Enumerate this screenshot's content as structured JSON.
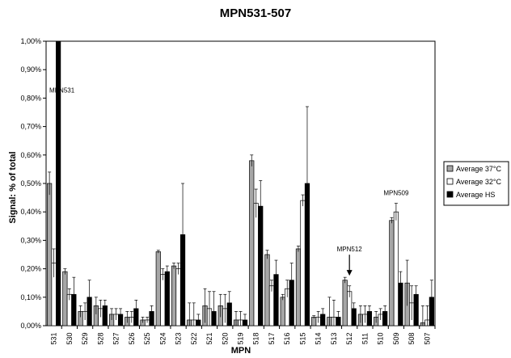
{
  "chart_data": {
    "type": "bar",
    "title": "MPN531-507",
    "xlabel": "MPN",
    "ylabel": "Signal: % of total",
    "ylim": [
      0,
      1.0
    ],
    "y_ticks": [
      "0,00%",
      "0,10%",
      "0,20%",
      "0,30%",
      "0,40%",
      "0,50%",
      "0,60%",
      "0,70%",
      "0,80%",
      "0,90%",
      "1,00%"
    ],
    "grid": false,
    "legend_position": "right",
    "categories": [
      "531",
      "530",
      "529",
      "528",
      "527",
      "526",
      "525",
      "524",
      "523",
      "522",
      "521",
      "520",
      "519",
      "518",
      "517",
      "516",
      "515",
      "514",
      "513",
      "512",
      "511",
      "510",
      "509",
      "508",
      "507"
    ],
    "series": [
      {
        "name": "Average 37°C",
        "color": "#a6a6a6",
        "values": [
          0.5,
          0.19,
          0.05,
          0.07,
          0.04,
          0.03,
          0.02,
          0.26,
          0.21,
          0.02,
          0.07,
          0.07,
          0.02,
          0.58,
          0.25,
          0.1,
          0.27,
          0.03,
          0.03,
          0.16,
          0.04,
          0.03,
          0.37,
          0.15,
          0.01
        ],
        "errors": [
          0.04,
          0.01,
          0.02,
          0.03,
          0.02,
          0.02,
          0.01,
          0.005,
          0.01,
          0.06,
          0.06,
          0.04,
          0.03,
          0.02,
          0.015,
          0.01,
          0.01,
          0.005,
          0.07,
          0.01,
          0.03,
          0.02,
          0.01,
          0.08,
          0.06
        ]
      },
      {
        "name": "Average 32°C",
        "color": "#ffffff",
        "values": [
          0.22,
          0.11,
          0.05,
          0.06,
          0.04,
          0.03,
          0.02,
          0.18,
          0.2,
          0.02,
          0.06,
          0.06,
          0.02,
          0.43,
          0.14,
          0.13,
          0.44,
          0.03,
          0.03,
          0.12,
          0.04,
          0.04,
          0.4,
          0.08,
          0.02
        ],
        "errors": [
          0.05,
          0.02,
          0.03,
          0.03,
          0.02,
          0.02,
          0.01,
          0.02,
          0.02,
          0.06,
          0.06,
          0.05,
          0.03,
          0.05,
          0.02,
          0.03,
          0.02,
          0.02,
          0.06,
          0.02,
          0.03,
          0.02,
          0.03,
          0.06,
          0.05
        ]
      },
      {
        "name": "Average HS",
        "color": "#000000",
        "values": [
          1.0,
          0.11,
          0.1,
          0.07,
          0.04,
          0.06,
          0.05,
          0.19,
          0.32,
          0.02,
          0.05,
          0.08,
          0.02,
          0.42,
          0.18,
          0.16,
          0.5,
          0.04,
          0.03,
          0.06,
          0.05,
          0.05,
          0.15,
          0.11,
          0.1
        ],
        "errors": [
          0,
          0.06,
          0.06,
          0.02,
          0.02,
          0.03,
          0.02,
          0.02,
          0.18,
          0.02,
          0.07,
          0.04,
          0.02,
          0.09,
          0.05,
          0.06,
          0.27,
          0.02,
          0.02,
          0.02,
          0.02,
          0.02,
          0.04,
          0.03,
          0.06
        ]
      }
    ],
    "annotations": [
      {
        "text": "MPN531",
        "category": "531"
      },
      {
        "text": "MPN512",
        "category": "512",
        "arrow": true
      },
      {
        "text": "MPN509",
        "category": "509"
      }
    ]
  }
}
